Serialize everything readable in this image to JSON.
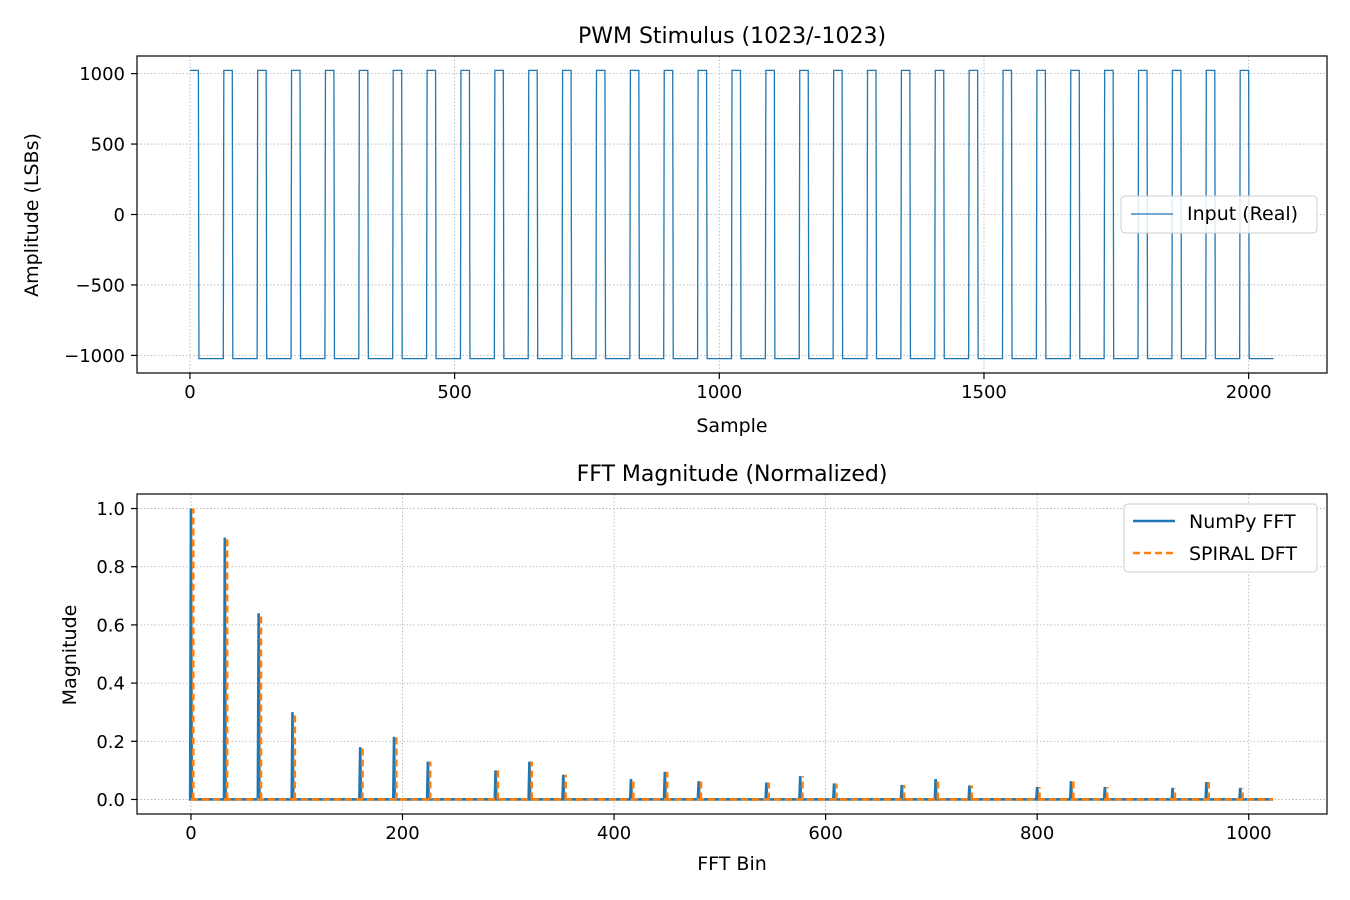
{
  "colors": {
    "blue": "#1f77b4",
    "orange": "#ff7f0e"
  },
  "chart_data": [
    {
      "type": "line",
      "title": "PWM Stimulus (1023/-1023)",
      "xlabel": "Sample",
      "ylabel": "Amplitude (LSBs)",
      "xlim": [
        -100,
        2148
      ],
      "ylim": [
        -1125,
        1125
      ],
      "xticks": [
        0,
        500,
        1000,
        1500,
        2000
      ],
      "xtick_labels": [
        "0",
        "500",
        "1000",
        "1500",
        "2000"
      ],
      "yticks": [
        1000,
        500,
        0,
        -500,
        -1000
      ],
      "ytick_labels": [
        "1000",
        "500",
        "0",
        "−500",
        "−1000"
      ],
      "grid": true,
      "legend_position": "center-right",
      "series": [
        {
          "name": "Input (Real)",
          "color": "#1f77b4",
          "high": 1023,
          "low": -1023,
          "n_samples": 2048,
          "period_samples": 64,
          "high_samples": 16,
          "high_start_samples": [
            0,
            64,
            128,
            192,
            256,
            320,
            384,
            448,
            512,
            576,
            640,
            704,
            768,
            832,
            896,
            960,
            1024,
            1088,
            1152,
            1216,
            1280,
            1344,
            1408,
            1472,
            1536,
            1600,
            1664,
            1728,
            1792,
            1856,
            1920,
            1984
          ]
        }
      ]
    },
    {
      "type": "line",
      "title": "FFT Magnitude (Normalized)",
      "xlabel": "FFT Bin",
      "ylabel": "Magnitude",
      "xlim": [
        -51,
        1074
      ],
      "ylim": [
        -0.05,
        1.05
      ],
      "xticks": [
        0,
        200,
        400,
        600,
        800,
        1000
      ],
      "xtick_labels": [
        "0",
        "200",
        "400",
        "600",
        "800",
        "1000"
      ],
      "yticks": [
        0.0,
        0.2,
        0.4,
        0.6,
        0.8,
        1.0
      ],
      "ytick_labels": [
        "0.0",
        "0.2",
        "0.4",
        "0.6",
        "0.8",
        "1.0"
      ],
      "grid": true,
      "legend_position": "top-right",
      "n_bins": 1024,
      "peaks": [
        [
          0,
          1.0
        ],
        [
          32,
          0.9
        ],
        [
          64,
          0.64
        ],
        [
          96,
          0.3
        ],
        [
          160,
          0.18
        ],
        [
          192,
          0.215
        ],
        [
          224,
          0.13
        ],
        [
          288,
          0.1
        ],
        [
          320,
          0.13
        ],
        [
          352,
          0.085
        ],
        [
          416,
          0.07
        ],
        [
          448,
          0.095
        ],
        [
          480,
          0.063
        ],
        [
          544,
          0.058
        ],
        [
          576,
          0.08
        ],
        [
          608,
          0.055
        ],
        [
          672,
          0.05
        ],
        [
          704,
          0.07
        ],
        [
          736,
          0.048
        ],
        [
          800,
          0.043
        ],
        [
          832,
          0.063
        ],
        [
          864,
          0.043
        ],
        [
          928,
          0.04
        ],
        [
          960,
          0.06
        ],
        [
          992,
          0.04
        ]
      ],
      "series": [
        {
          "name": "NumPy FFT",
          "color": "#1f77b4",
          "style": "solid"
        },
        {
          "name": "SPIRAL DFT",
          "color": "#ff7f0e",
          "style": "dashed"
        }
      ]
    }
  ]
}
